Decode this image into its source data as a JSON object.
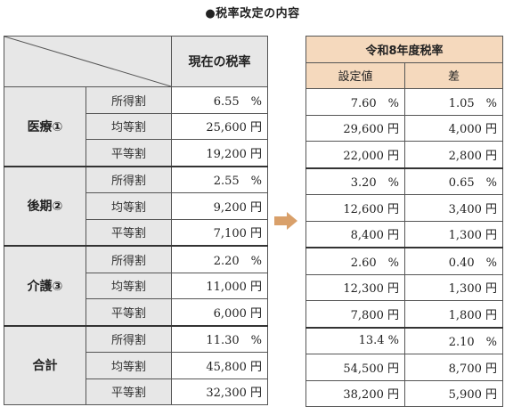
{
  "title": "●税率改定の内容",
  "left_header": {
    "current": "現在の税率"
  },
  "right_header": {
    "title": "令和8年度税率",
    "col1": "設定値",
    "col2": "差"
  },
  "groups": [
    {
      "name": "医療①",
      "rows": [
        {
          "label": "所得割",
          "current": "6.55　%",
          "new": "7.60　%",
          "diff": "1.05　%"
        },
        {
          "label": "均等割",
          "current": "25,600 円",
          "new": "29,600 円",
          "diff": "4,000 円"
        },
        {
          "label": "平等割",
          "current": "19,200 円",
          "new": "22,000 円",
          "diff": "2,800 円"
        }
      ]
    },
    {
      "name": "後期②",
      "rows": [
        {
          "label": "所得割",
          "current": "2.55　%",
          "new": "3.20　%",
          "diff": "0.65　%"
        },
        {
          "label": "均等割",
          "current": "9,200 円",
          "new": "12,600 円",
          "diff": "3,400 円"
        },
        {
          "label": "平等割",
          "current": "7,100 円",
          "new": "8,400 円",
          "diff": "1,300 円"
        }
      ]
    },
    {
      "name": "介護③",
      "rows": [
        {
          "label": "所得割",
          "current": "2.20　%",
          "new": "2.60　%",
          "diff": "0.40　%"
        },
        {
          "label": "均等割",
          "current": "11,000 円",
          "new": "12,300 円",
          "diff": "1,300 円"
        },
        {
          "label": "平等割",
          "current": "6,000 円",
          "new": "7,800 円",
          "diff": "1,800 円"
        }
      ]
    },
    {
      "name": "合計",
      "rows": [
        {
          "label": "所得割",
          "current": "11.30　%",
          "new": "13.4 %",
          "diff": "2.10　%"
        },
        {
          "label": "均等割",
          "current": "45,800 円",
          "new": "54,500 円",
          "diff": "8,700 円"
        },
        {
          "label": "平等割",
          "current": "32,300 円",
          "new": "38,200 円",
          "diff": "5,900 円"
        }
      ]
    }
  ],
  "colors": {
    "header_gray": "#e7e7e7",
    "header_peach": "#f5d9bd",
    "arrow": "#d9a06a"
  },
  "icons": {
    "arrow": "right-arrow-icon"
  }
}
